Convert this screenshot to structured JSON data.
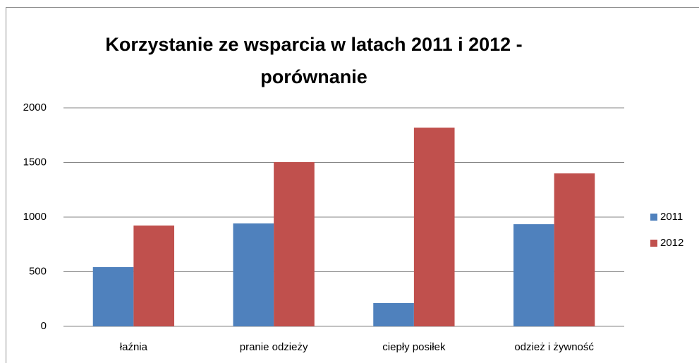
{
  "chart_data": {
    "type": "bar",
    "title": "Korzystanie ze wsparcia w latach 2011 i 2012 - porównanie",
    "categories": [
      "łaźnia",
      "pranie odzieży",
      "ciepły posiłek",
      "odzież i żywność"
    ],
    "series": [
      {
        "name": "2011",
        "color": "#4f81bd",
        "values": [
          542,
          942,
          213,
          935
        ]
      },
      {
        "name": "2012",
        "color": "#c0504d",
        "values": [
          923,
          1503,
          1819,
          1400
        ]
      }
    ],
    "ylim": [
      0,
      2000
    ],
    "yticks": [
      0,
      500,
      1000,
      1500,
      2000
    ],
    "grid": true,
    "legend": "right"
  }
}
